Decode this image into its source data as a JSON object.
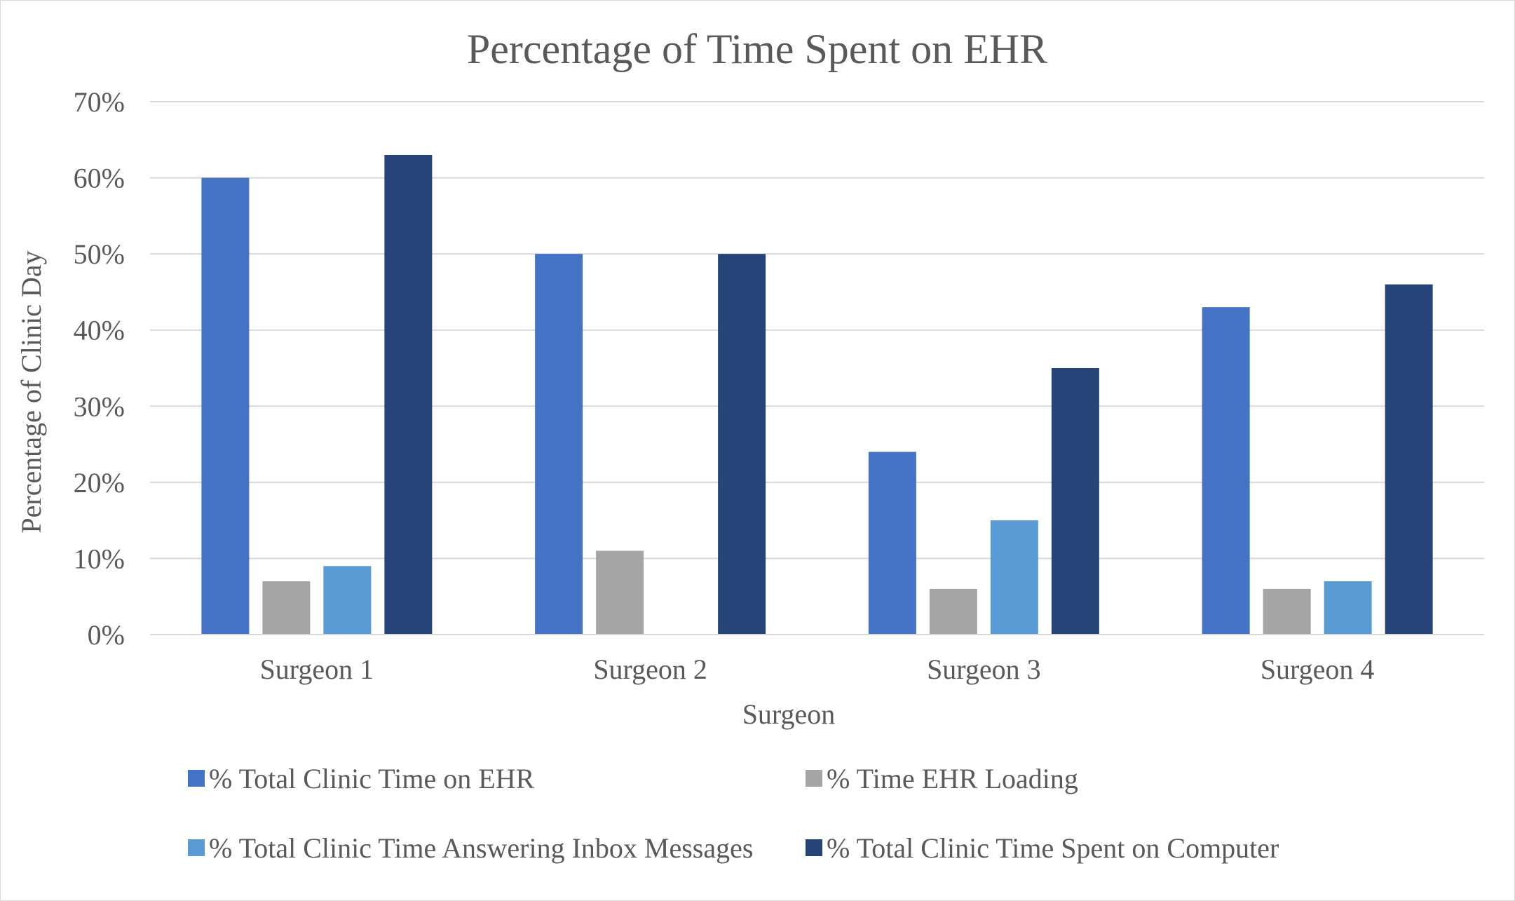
{
  "chart_data": {
    "type": "bar",
    "title": "Percentage of Time Spent on EHR",
    "xlabel": "Surgeon",
    "ylabel": "Percentage of Clinic Day",
    "categories": [
      "Surgeon 1",
      "Surgeon 2",
      "Surgeon 3",
      "Surgeon 4"
    ],
    "ylim": [
      0,
      70
    ],
    "yticks": [
      "0%",
      "10%",
      "20%",
      "30%",
      "40%",
      "50%",
      "60%",
      "70%"
    ],
    "grid": true,
    "legend_position": "bottom",
    "series": [
      {
        "name": "% Total Clinic Time on EHR",
        "color": "#4472c4",
        "values": [
          60,
          50,
          24,
          43
        ]
      },
      {
        "name": "% Time EHR Loading",
        "color": "#a5a5a5",
        "values": [
          7,
          11,
          6,
          6
        ]
      },
      {
        "name": "% Total Clinic Time Answering Inbox Messages",
        "color": "#5b9bd5",
        "values": [
          9,
          0,
          15,
          7
        ]
      },
      {
        "name": "% Total Clinic Time Spent on Computer",
        "color": "#264478",
        "values": [
          63,
          50,
          35,
          46
        ]
      }
    ]
  }
}
